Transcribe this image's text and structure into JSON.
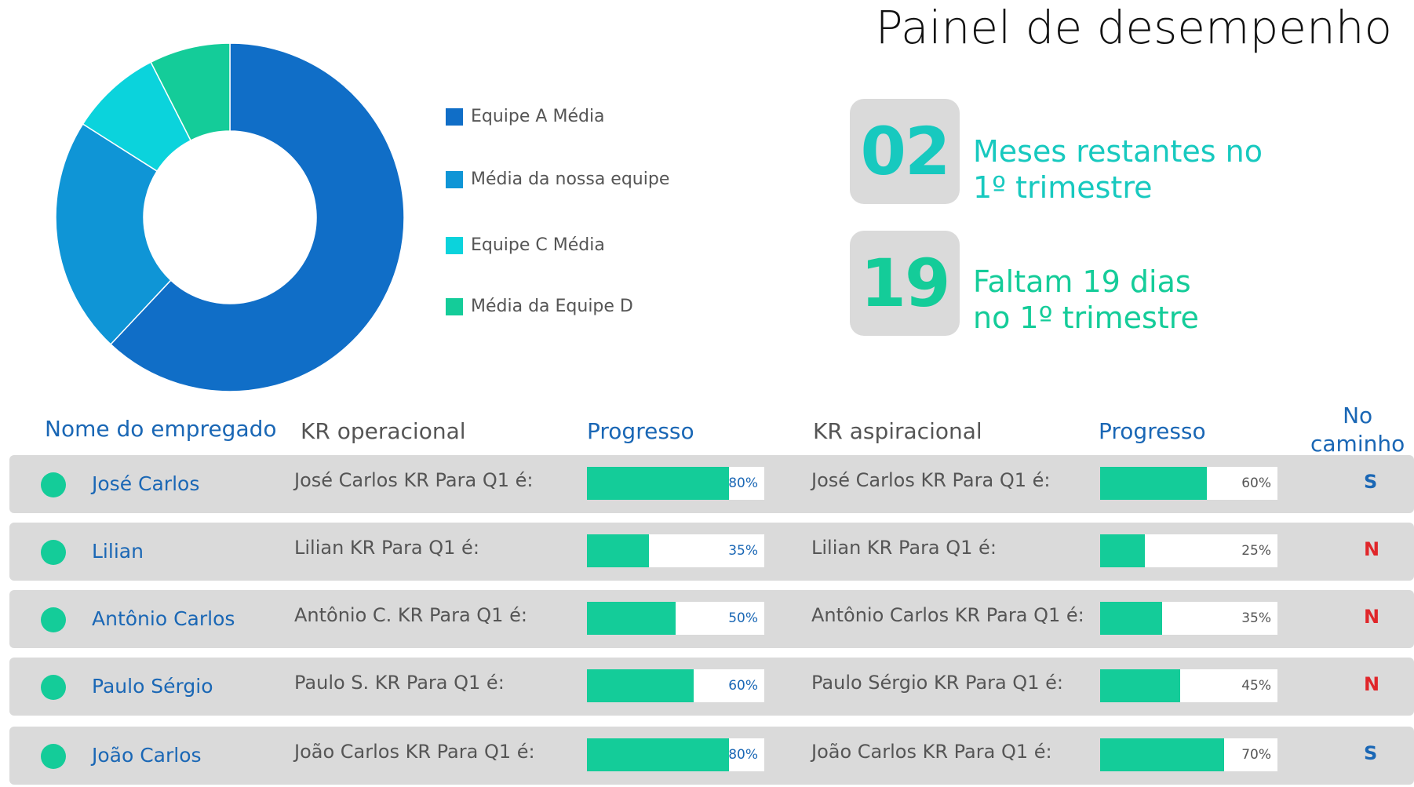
{
  "title": "Painel de desempenho",
  "chart_data": {
    "type": "pie",
    "categories": [
      "Equipe A Média",
      "Média da nossa equipe",
      "Equipe C Média",
      "Média da Equipe D"
    ],
    "values": [
      62,
      22,
      8.5,
      7.5
    ],
    "colors": [
      "#106ec7",
      "#0f95d6",
      "#0bd3dc",
      "#14cc99"
    ],
    "legend_placement": "right"
  },
  "stats": [
    {
      "value": "02",
      "text_line1": "Meses restantes no",
      "text_line2": "1º trimestre",
      "color": "#17c9bf"
    },
    {
      "value": "19",
      "text_line1": "Faltam 19 dias",
      "text_line2": "no 1º trimestre",
      "color": "#14cc99"
    }
  ],
  "table": {
    "headers": {
      "name": "Nome do empregado",
      "kr_op": "KR operacional",
      "progress1": "Progresso",
      "kr_asp": "KR aspiracional",
      "progress2": "Progresso",
      "on_track_line1": "No",
      "on_track_line2": "caminho"
    },
    "rows": [
      {
        "name": "José Carlos",
        "kr_op": "José Carlos KR Para Q1 é:",
        "progress1": 80,
        "progress1_label": "80%",
        "kr_asp": "José Carlos KR Para Q1 é:",
        "progress2": 60,
        "progress2_label": "60%",
        "on_track": "S"
      },
      {
        "name": "Lilian",
        "kr_op": "Lilian KR Para Q1 é:",
        "progress1": 35,
        "progress1_label": "35%",
        "kr_asp": "Lilian KR Para Q1 é:",
        "progress2": 25,
        "progress2_label": "25%",
        "on_track": "N"
      },
      {
        "name": "Antônio Carlos",
        "kr_op": "Antônio C. KR Para Q1 é:",
        "progress1": 50,
        "progress1_label": "50%",
        "kr_asp": "Antônio Carlos KR Para Q1 é:",
        "progress2": 35,
        "progress2_label": "35%",
        "on_track": "N"
      },
      {
        "name": "Paulo Sérgio",
        "kr_op": "Paulo S. KR Para Q1 é:",
        "progress1": 60,
        "progress1_label": "60%",
        "kr_asp": "Paulo Sérgio KR Para Q1 é:",
        "progress2": 45,
        "progress2_label": "45%",
        "on_track": "N"
      },
      {
        "name": "João Carlos",
        "kr_op": "João Carlos KR Para Q1 é:",
        "progress1": 80,
        "progress1_label": "80%",
        "kr_asp": "João Carlos KR Para Q1 é:",
        "progress2": 70,
        "progress2_label": "70%",
        "on_track": "S"
      }
    ]
  },
  "colors": {
    "status_yes": "#1a67b5",
    "status_no": "#e0262a",
    "bar_fill": "#14cc99",
    "dot": "#14cc99",
    "name_blue": "#1a67b5"
  }
}
